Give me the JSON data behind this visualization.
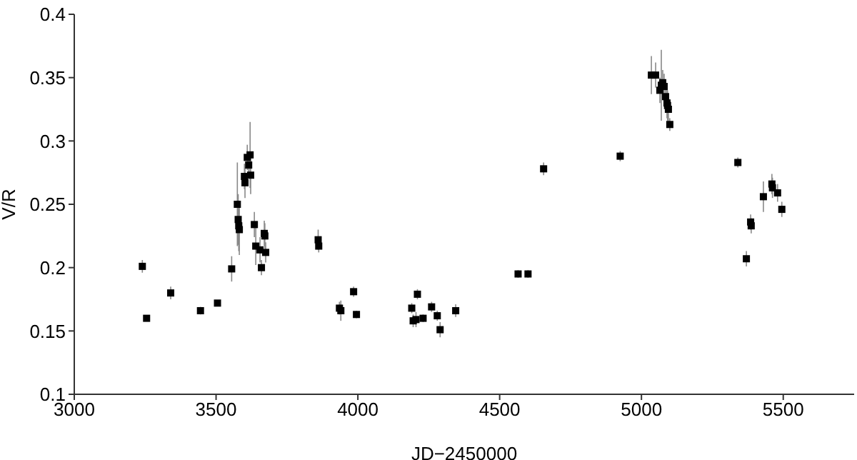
{
  "chart_data": {
    "type": "scatter",
    "xlabel": "JD−2450000",
    "ylabel": "V/R",
    "xlim": [
      3000,
      5750
    ],
    "xticks": [
      3000,
      3500,
      4000,
      4500,
      5000,
      5500
    ],
    "ylim": [
      0.1,
      0.4
    ],
    "yticks": [
      0.1,
      0.15,
      0.2,
      0.25,
      0.3,
      0.35,
      0.4
    ],
    "grid": false,
    "legend": false,
    "marker": "square",
    "series": [
      {
        "color": "#000000",
        "x": [
          3240,
          3255,
          3340,
          3445,
          3505,
          3555,
          3575,
          3578,
          3580,
          3582,
          3600,
          3602,
          3610,
          3615,
          3620,
          3622,
          3635,
          3640,
          3655,
          3660,
          3670,
          3672,
          3675,
          3860,
          3862,
          3935,
          3940,
          3985,
          3995,
          4190,
          4195,
          4205,
          4210,
          4230,
          4260,
          4280,
          4290,
          4345,
          4565,
          4600,
          4655,
          4925,
          5035,
          5050,
          5065,
          5070,
          5075,
          5080,
          5085,
          5090,
          5092,
          5095,
          5100,
          5340,
          5370,
          5385,
          5387,
          5430,
          5460,
          5462,
          5480,
          5495
        ],
        "values": [
          0.201,
          0.16,
          0.18,
          0.166,
          0.172,
          0.199,
          0.25,
          0.238,
          0.233,
          0.23,
          0.272,
          0.267,
          0.287,
          0.281,
          0.289,
          0.273,
          0.234,
          0.217,
          0.214,
          0.2,
          0.227,
          0.225,
          0.212,
          0.222,
          0.217,
          0.168,
          0.166,
          0.181,
          0.163,
          0.168,
          0.158,
          0.159,
          0.179,
          0.16,
          0.169,
          0.162,
          0.151,
          0.166,
          0.195,
          0.195,
          0.278,
          0.288,
          0.352,
          0.352,
          0.34,
          0.344,
          0.346,
          0.343,
          0.335,
          0.33,
          0.328,
          0.325,
          0.313,
          0.283,
          0.207,
          0.236,
          0.233,
          0.256,
          0.266,
          0.263,
          0.259,
          0.246
        ],
        "errors": [
          0.005,
          0.002,
          0.005,
          0.003,
          0.002,
          0.01,
          0.033,
          0.02,
          0.02,
          0.02,
          0.01,
          0.012,
          0.01,
          0.01,
          0.026,
          0.015,
          0.01,
          0.015,
          0.01,
          0.006,
          0.01,
          0.01,
          0.008,
          0.008,
          0.005,
          0.005,
          0.008,
          0.004,
          0.003,
          0.004,
          0.005,
          0.006,
          0.004,
          0.003,
          0.004,
          0.004,
          0.006,
          0.005,
          0.003,
          0.003,
          0.005,
          0.004,
          0.015,
          0.01,
          0.01,
          0.028,
          0.01,
          0.01,
          0.01,
          0.012,
          0.012,
          0.01,
          0.005,
          0.004,
          0.006,
          0.006,
          0.006,
          0.012,
          0.008,
          0.008,
          0.007,
          0.006
        ]
      }
    ]
  }
}
